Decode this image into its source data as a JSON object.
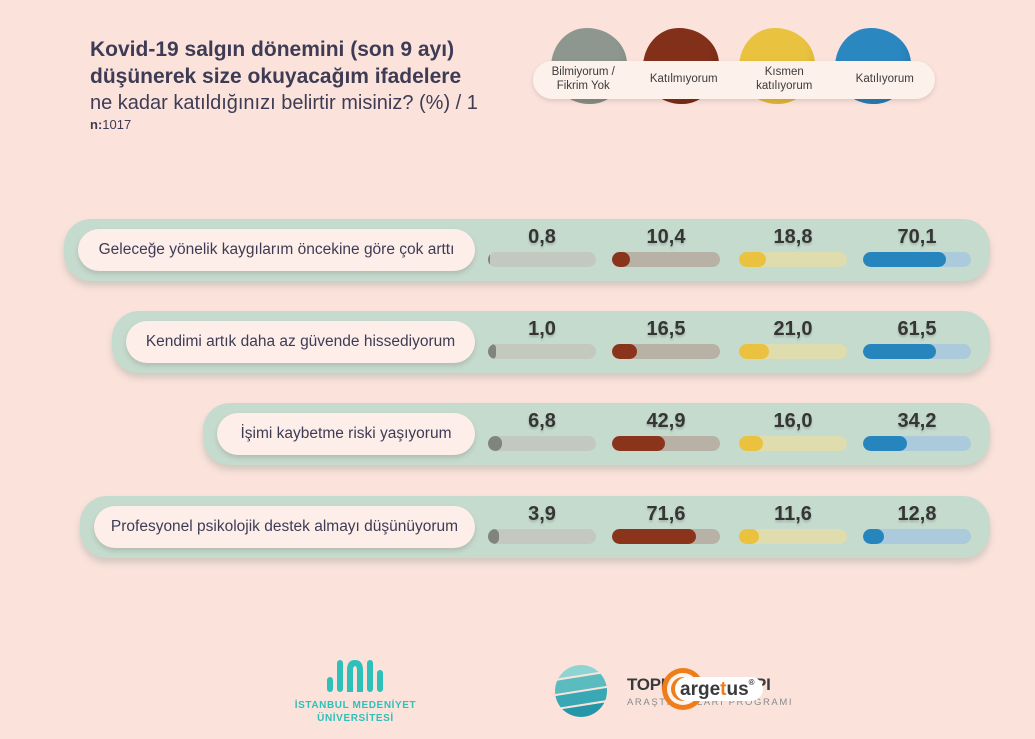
{
  "title": {
    "line1": "Kovid-19 salgın dönemini (son 9 ayı)",
    "line2": "düşünerek size okuyacağım ifadelere",
    "line3": "ne kadar katıldığınızı belirtir misiniz? (%) / 1",
    "n_label": "n:",
    "n_value": "1017"
  },
  "legend": {
    "items": [
      {
        "label": "Bilmiyorum /\nFikrim Yok",
        "color": "#8e978f",
        "edge": "#747f73"
      },
      {
        "label": "Katılmıyorum",
        "color": "#83301a",
        "edge": "#631f0d"
      },
      {
        "label": "Kısmen\nkatılıyorum",
        "color": "#e9c33f",
        "edge": "#cfa42a"
      },
      {
        "label": "Katılıyorum",
        "color": "#2b87c0",
        "edge": "#1b679b"
      }
    ]
  },
  "chart_data": {
    "type": "bar",
    "title": "Kovid-19 salgın dönemini (son 9 ayı) düşünerek size okuyacağım ifadelere ne kadar katıldığınızı belirtir misiniz? (%) / 1",
    "sample_n": "1017",
    "unit": "%",
    "xlim": [
      0,
      100
    ],
    "categories": [
      "Bilmiyorum / Fikrim Yok",
      "Katılmıyorum",
      "Kısmen katılıyorum",
      "Katılıyorum"
    ],
    "category_colors": [
      "#7f857b",
      "#8a341c",
      "#eac23f",
      "#2785bd"
    ],
    "rows": [
      {
        "label": "Geleceğe yönelik kaygılarım öncekine göre çok arttı",
        "values": [
          0.8,
          10.4,
          18.8,
          70.1
        ],
        "display": [
          "0,8",
          "10,4",
          "18,8",
          "70,1"
        ]
      },
      {
        "label": "Kendimi artık daha az güvende hissediyorum",
        "values": [
          1.0,
          16.5,
          21.0,
          61.5
        ],
        "display": [
          "1,0",
          "16,5",
          "21,0",
          "61,5"
        ]
      },
      {
        "label": "İşimi kaybetme riski yaşıyorum",
        "values": [
          6.8,
          42.9,
          16.0,
          34.2
        ],
        "display": [
          "6,8",
          "42,9",
          "16,0",
          "34,2"
        ]
      },
      {
        "label": "Profesyonel psikolojik destek almayı düşünüyorum",
        "values": [
          3.9,
          71.6,
          11.6,
          12.8
        ],
        "display": [
          "3,9",
          "71,6",
          "11,6",
          "12,8"
        ]
      }
    ]
  },
  "footer": {
    "imu_line1": "İSTANBUL MEDENİYET",
    "imu_line2": "ÜNİVERSİTESİ",
    "typ_line1": "TOPLUMSAL YAPI",
    "typ_line2": "ARAŞTIRMALARI PROGRAMI",
    "argetus_part1": "arge",
    "argetus_part2": "t",
    "argetus_part3": "us",
    "argetus_reg": "®"
  },
  "colors": {
    "background": "#fbe3dc",
    "row_background": "#c5dbce",
    "pill_background": "#fdeee9",
    "title_text": "#3e3c55",
    "imu_teal": "#2dc1b9",
    "argetus_orange": "#ef7d1a"
  }
}
